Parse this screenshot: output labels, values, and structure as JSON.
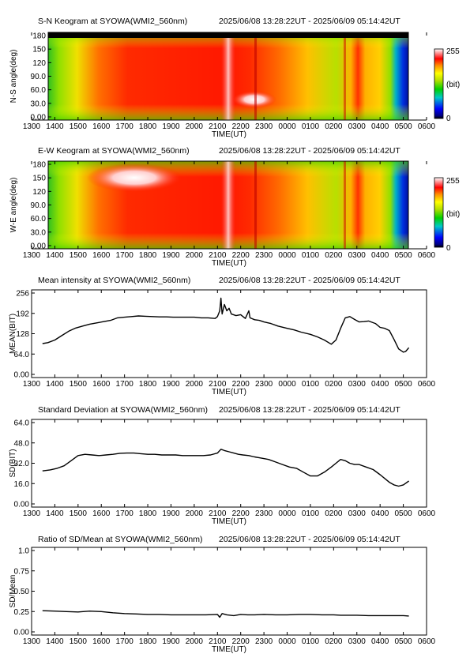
{
  "time_ticks": [
    "1300",
    "1400",
    "1500",
    "1600",
    "1700",
    "1800",
    "1900",
    "2000",
    "2100",
    "2200",
    "2300",
    "0000",
    "0100",
    "0200",
    "0300",
    "0400",
    "0500",
    "0600"
  ],
  "time_label": "TIME(UT)",
  "time_range_label": "2025/06/08 13:28:22UT - 2025/06/09 05:14:42UT",
  "colorbar": {
    "max_label": "255",
    "min_label": "0",
    "unit_label": "(bit)"
  },
  "chart_data": [
    {
      "type": "heatmap",
      "title": "S-N Keogram at SYOWA(WMI2_560nm)",
      "ylabel": "N-S angle(deg)",
      "yticks": [
        "0.00",
        "30.0",
        "60.0",
        "90.0",
        "120",
        "150",
        "180"
      ],
      "ylim": [
        0,
        180
      ],
      "xlim": [
        "1300",
        "0600"
      ],
      "data_x_range": [
        "13:28:22",
        "05:14:42"
      ]
    },
    {
      "type": "heatmap",
      "title": "E-W Keogram at SYOWA(WMI2_560nm)",
      "ylabel": "W-E angle(deg)",
      "yticks": [
        "0.00",
        "30.0",
        "60.0",
        "90.0",
        "120",
        "150",
        "180"
      ],
      "ylim": [
        0,
        180
      ],
      "xlim": [
        "1300",
        "0600"
      ],
      "data_x_range": [
        "13:28:22",
        "05:14:42"
      ]
    },
    {
      "type": "line",
      "title": "Mean intensity at SYOWA(WMI2_560nm)",
      "ylabel": "MEAN(BIT)",
      "yticks": [
        "0.00",
        "64.0",
        "128",
        "192",
        "256"
      ],
      "ylim": [
        0,
        256
      ],
      "series": [
        {
          "x": [
            13.47,
            13.7,
            14.0,
            14.3,
            14.6,
            14.9,
            15.2,
            15.5,
            15.8,
            16.1,
            16.4,
            16.7,
            17.0,
            17.3,
            17.6,
            17.9,
            18.2,
            18.5,
            18.8,
            19.1,
            19.4,
            19.7,
            20.0,
            20.3,
            20.6,
            20.9,
            21.0,
            21.1,
            21.15,
            21.2,
            21.3,
            21.4,
            21.5,
            21.6,
            21.8,
            22.0,
            22.2,
            22.35,
            22.4,
            22.6,
            22.8,
            23.0,
            23.3,
            23.6,
            24.0,
            24.3,
            24.6,
            25.0,
            25.3,
            25.6,
            25.9,
            26.1,
            26.3,
            26.5,
            26.7,
            26.9,
            27.1,
            27.3,
            27.5,
            27.8,
            28.0,
            28.2,
            28.4,
            28.6,
            28.8,
            29.0,
            29.1,
            29.24
          ],
          "y": [
            97,
            100,
            108,
            122,
            136,
            146,
            152,
            158,
            162,
            166,
            170,
            178,
            180,
            182,
            184,
            183,
            182,
            181,
            181,
            180,
            180,
            180,
            180,
            178,
            178,
            176,
            182,
            200,
            240,
            190,
            220,
            200,
            208,
            190,
            185,
            188,
            176,
            200,
            178,
            172,
            170,
            165,
            160,
            152,
            145,
            140,
            133,
            126,
            118,
            108,
            95,
            108,
            145,
            178,
            182,
            173,
            165,
            166,
            168,
            160,
            148,
            145,
            138,
            110,
            80,
            70,
            72,
            84
          ]
        }
      ]
    },
    {
      "type": "line",
      "title": "Standard Deviation at SYOWA(WMI2_560nm)",
      "ylabel": "SD(BIT)",
      "yticks": [
        "0.00",
        "16.0",
        "32.0",
        "48.0",
        "64.0"
      ],
      "ylim": [
        0,
        64
      ],
      "series": [
        {
          "x": [
            13.47,
            13.8,
            14.1,
            14.4,
            14.7,
            15.0,
            15.3,
            15.6,
            15.9,
            16.2,
            16.5,
            16.8,
            17.1,
            17.4,
            17.7,
            18.0,
            18.3,
            18.6,
            18.9,
            19.2,
            19.5,
            19.8,
            20.1,
            20.4,
            20.7,
            21.0,
            21.15,
            21.3,
            21.5,
            21.7,
            21.9,
            22.1,
            22.35,
            22.6,
            22.9,
            23.2,
            23.5,
            23.8,
            24.1,
            24.4,
            24.7,
            25.0,
            25.3,
            25.6,
            25.9,
            26.1,
            26.3,
            26.5,
            26.7,
            26.9,
            27.1,
            27.4,
            27.7,
            28.0,
            28.2,
            28.4,
            28.6,
            28.8,
            29.0,
            29.24
          ],
          "y": [
            26,
            26.8,
            28,
            30,
            34,
            38,
            39,
            38.5,
            38,
            38.5,
            39,
            39.8,
            40,
            40,
            39.5,
            39,
            39,
            38.5,
            38.5,
            38.5,
            38,
            38,
            38,
            38,
            38.5,
            40,
            43,
            42,
            41,
            40,
            39,
            38.5,
            38,
            37,
            36,
            35,
            33,
            31,
            29,
            28,
            25,
            22,
            22,
            25,
            29,
            32,
            35,
            34,
            32,
            31,
            31,
            29,
            27,
            23,
            20,
            17,
            15,
            14,
            15,
            18
          ]
        }
      ]
    },
    {
      "type": "line",
      "title": "Ratio of SD/Mean at SYOWA(WMI2_560nm)",
      "ylabel": "SD/Mean",
      "yticks": [
        "0.00",
        "0.25",
        "0.50",
        "0.75",
        "1.0"
      ],
      "ylim": [
        0,
        1
      ],
      "series": [
        {
          "x": [
            13.47,
            14.0,
            14.5,
            15.0,
            15.5,
            16.0,
            16.5,
            17.0,
            17.5,
            18.0,
            18.5,
            19.0,
            19.5,
            20.0,
            20.5,
            21.0,
            21.1,
            21.2,
            21.4,
            21.7,
            22.0,
            22.3,
            22.6,
            23.0,
            23.5,
            24.0,
            24.5,
            25.0,
            25.5,
            26.0,
            26.3,
            26.6,
            27.0,
            27.5,
            28.0,
            28.5,
            29.0,
            29.24
          ],
          "y": [
            0.26,
            0.255,
            0.25,
            0.245,
            0.255,
            0.25,
            0.235,
            0.225,
            0.22,
            0.215,
            0.215,
            0.21,
            0.21,
            0.21,
            0.21,
            0.215,
            0.18,
            0.225,
            0.21,
            0.2,
            0.215,
            0.21,
            0.21,
            0.215,
            0.21,
            0.21,
            0.215,
            0.215,
            0.21,
            0.21,
            0.205,
            0.205,
            0.205,
            0.2,
            0.2,
            0.2,
            0.2,
            0.195
          ]
        }
      ]
    }
  ]
}
